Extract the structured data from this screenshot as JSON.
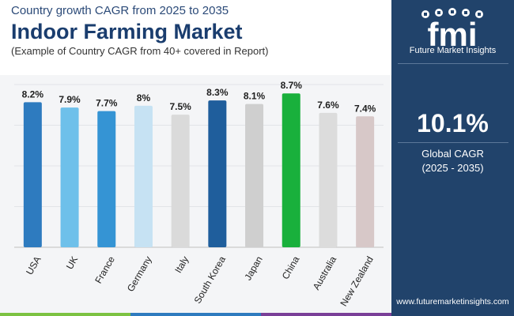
{
  "header": {
    "subtitle": "Country growth CAGR from 2025 to 2035",
    "title": "Indoor Farming Market",
    "caption": "(Example of Country CAGR from 40+ covered in Report)"
  },
  "brand": {
    "name": "Future Market Insights",
    "logo_letters": "fmi",
    "website": "www.futuremarketinsights.com"
  },
  "stat": {
    "value": "10.1%",
    "label_line1": "Global CAGR",
    "label_line2": "(2025 - 2035)"
  },
  "colors": {
    "sidebar": "#21436b",
    "title": "#1a3d6e",
    "strip": [
      "#7cc242",
      "#2e7bbf",
      "#7a3f98"
    ]
  },
  "chart_data": {
    "type": "bar",
    "title": "",
    "xlabel": "",
    "ylabel": "",
    "categories": [
      "USA",
      "UK",
      "France",
      "Germany",
      "Italy",
      "South Korea",
      "Japan",
      "China",
      "Australia",
      "New Zealand"
    ],
    "values": [
      8.2,
      7.9,
      7.7,
      8.0,
      7.5,
      8.3,
      8.1,
      8.7,
      7.6,
      7.4
    ],
    "value_labels": [
      "8.2%",
      "7.9%",
      "7.7%",
      "8%",
      "7.5%",
      "8.3%",
      "8.1%",
      "8.7%",
      "7.6%",
      "7.4%"
    ],
    "bar_colors": [
      "#2e7bbf",
      "#6ec0ea",
      "#3594d4",
      "#c6e2f3",
      "#dadada",
      "#1f5e9c",
      "#cfcfcf",
      "#19b03c",
      "#dcdcdc",
      "#d7c8c8"
    ],
    "ylim": [
      0,
      9.2
    ],
    "grid": true,
    "legend": "none"
  }
}
